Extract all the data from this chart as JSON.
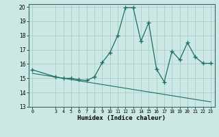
{
  "xlabel": "Humidex (Indice chaleur)",
  "bg_color": "#cce8e4",
  "grid_color": "#aacccc",
  "line_color": "#1a6e62",
  "xlim": [
    -0.5,
    23.5
  ],
  "ylim": [
    13,
    20.2
  ],
  "xticks": [
    0,
    3,
    4,
    5,
    6,
    7,
    8,
    9,
    10,
    11,
    12,
    13,
    14,
    15,
    16,
    17,
    18,
    19,
    20,
    21,
    22,
    23
  ],
  "yticks": [
    13,
    14,
    15,
    16,
    17,
    18,
    19,
    20
  ],
  "series1_x": [
    0,
    3,
    4,
    5,
    6,
    7,
    8,
    9,
    10,
    11,
    12,
    13,
    14,
    15,
    16,
    17,
    18,
    19,
    20,
    21,
    22,
    23
  ],
  "series1_y": [
    15.6,
    15.1,
    15.0,
    15.0,
    14.9,
    14.85,
    15.1,
    16.1,
    16.8,
    18.0,
    19.95,
    19.95,
    17.6,
    18.9,
    15.65,
    14.75,
    16.9,
    16.3,
    17.5,
    16.5,
    16.05,
    16.05
  ],
  "series2_x": [
    0,
    23
  ],
  "series2_y": [
    15.35,
    13.35
  ]
}
